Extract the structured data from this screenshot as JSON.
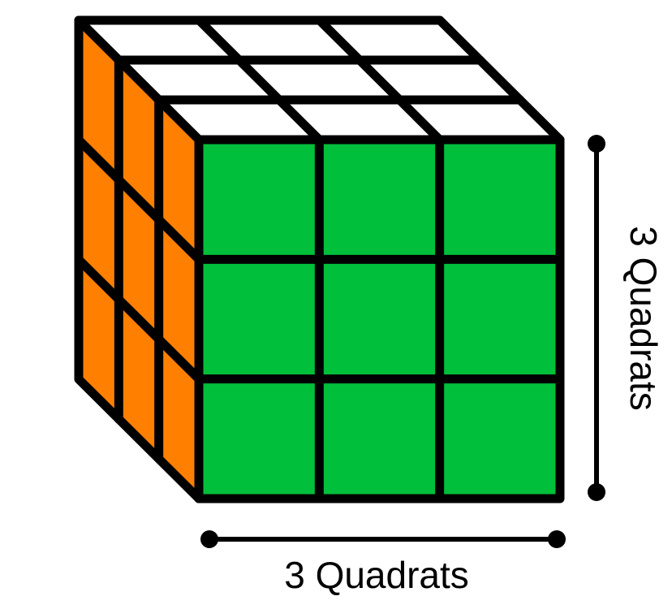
{
  "diagram": {
    "subject": "3x3 cube",
    "grid_size": 3,
    "colors": {
      "front": "#00bf3b",
      "side": "#ff7f00",
      "top": "#ffffff",
      "outline": "#000000",
      "background": "#ffffff"
    },
    "labels": {
      "width": "3 Quadrats",
      "height": "3 Quadrats"
    }
  }
}
